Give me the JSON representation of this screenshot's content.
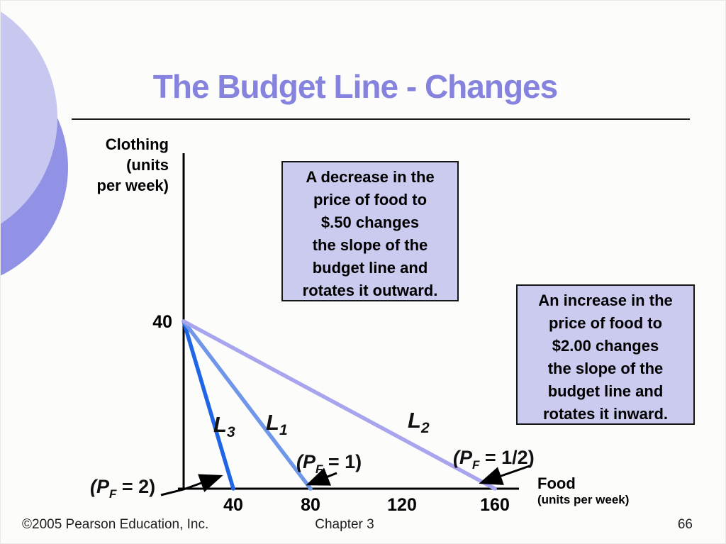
{
  "slide": {
    "title": "The Budget Line - Changes",
    "footer": {
      "copyright": "©2005 Pearson Education, Inc.",
      "chapter": "Chapter 3",
      "page": "66"
    }
  },
  "annotations": {
    "decrease_box": "A decrease in the\nprice of food to\n$.50 changes\nthe slope of the\nbudget line and\nrotates it outward.",
    "increase_box": "An increase in the\nprice of food to\n$2.00 changes\nthe slope of the\nbudget line and\nrotates it inward."
  },
  "colors": {
    "title": "#8583de",
    "callout_bg": "#cbcbef",
    "circle_light": "#c7c7ef",
    "circle_dark": "#9191e6",
    "axis": "#000000",
    "arrow": "#000000"
  },
  "chart_data": {
    "type": "line",
    "title": "",
    "xlabel": "Food (units per week)",
    "xlabel_lines": [
      "Food",
      "(units per week)"
    ],
    "ylabel": "Clothing (units per week)",
    "ylabel_lines": [
      "Clothing",
      "(units",
      "per week)"
    ],
    "xlim": [
      0,
      175
    ],
    "ylim": [
      0,
      80
    ],
    "x_ticks": [
      40,
      80,
      120,
      160
    ],
    "y_ticks": [
      40
    ],
    "grid": false,
    "legend": "none",
    "series": [
      {
        "name": "L3",
        "label_parts": [
          "L",
          "3"
        ],
        "price_parts": [
          "(P",
          "F",
          " = 2)"
        ],
        "points": [
          [
            0,
            40
          ],
          [
            40,
            0
          ]
        ],
        "color": "#1f65e6",
        "meaning": "budget line after food price increase to $2.00 (rotates inward)"
      },
      {
        "name": "L1",
        "label_parts": [
          "L",
          "1"
        ],
        "price_parts": [
          "(P",
          "F",
          " = 1)"
        ],
        "points": [
          [
            0,
            40
          ],
          [
            80,
            0
          ]
        ],
        "color": "#6f96e8",
        "meaning": "original budget line with food price $1.00"
      },
      {
        "name": "L2",
        "label_parts": [
          "L",
          "2"
        ],
        "price_parts": [
          "(P",
          "F",
          " = 1/2)"
        ],
        "points": [
          [
            0,
            40
          ],
          [
            160,
            0
          ]
        ],
        "color": "#a9a4ee",
        "meaning": "budget line after food price decrease to $0.50 (rotates outward)"
      }
    ]
  }
}
